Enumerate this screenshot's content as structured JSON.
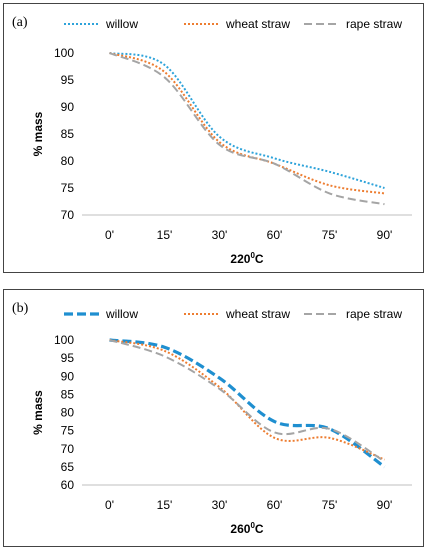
{
  "chart_data": [
    {
      "type": "line",
      "panel_label": "(a)",
      "xlabel": "220",
      "xlabel_sup": "0",
      "xlabel_suffix": "C",
      "ylabel": "% mass",
      "categories": [
        "0'",
        "15'",
        "30'",
        "60'",
        "75'",
        "90'"
      ],
      "ylim": [
        70,
        100
      ],
      "yticks": [
        70,
        75,
        80,
        85,
        90,
        95,
        100
      ],
      "legend_position": "top",
      "series": [
        {
          "name": "willow",
          "color": "#2EA3DA",
          "style": "dotted",
          "values": [
            100,
            97.8,
            84.5,
            80.5,
            78.0,
            75.0
          ]
        },
        {
          "name": "wheat straw",
          "color": "#ED7D31",
          "style": "dotted",
          "values": [
            100,
            96.5,
            83.5,
            79.5,
            75.5,
            74.0
          ]
        },
        {
          "name": "rape straw",
          "color": "#A5A5A5",
          "style": "dashed",
          "values": [
            100,
            95.5,
            83.0,
            79.5,
            74.0,
            72.0
          ]
        }
      ]
    },
    {
      "type": "line",
      "panel_label": "(b)",
      "xlabel": "260",
      "xlabel_sup": "0",
      "xlabel_suffix": "C",
      "ylabel": "% mass",
      "categories": [
        "0'",
        "15'",
        "30'",
        "60'",
        "75'",
        "90'"
      ],
      "ylim": [
        60,
        100
      ],
      "yticks": [
        60,
        65,
        70,
        75,
        80,
        85,
        90,
        95,
        100
      ],
      "legend_position": "top",
      "series": [
        {
          "name": "willow",
          "color": "#1F8FD0",
          "style": "bold-dashed",
          "values": [
            100,
            98.0,
            89.5,
            77.5,
            75.5,
            65.0
          ]
        },
        {
          "name": "wheat straw",
          "color": "#ED7D31",
          "style": "dotted",
          "values": [
            100,
            97.0,
            87.0,
            73.0,
            73.0,
            67.0
          ]
        },
        {
          "name": "rape straw",
          "color": "#A5A5A5",
          "style": "dashed",
          "values": [
            100,
            95.5,
            86.5,
            74.5,
            75.5,
            66.5
          ]
        }
      ]
    }
  ]
}
